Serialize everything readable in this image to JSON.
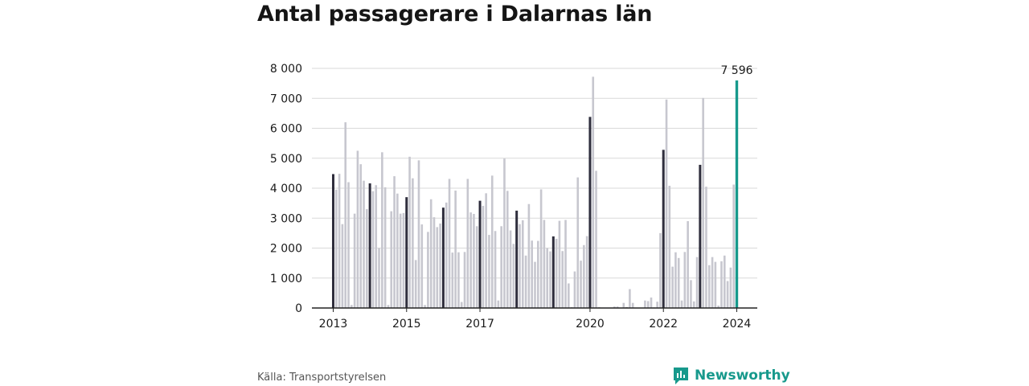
{
  "title": "Antal passagerare i Dalarnas län",
  "source": "Källa: Transportstyrelsen",
  "brand": {
    "name": "Newsworthy",
    "icon": "newsworthy-logo-icon"
  },
  "colors": {
    "bar": "#c7c7cf",
    "january": "#2f2e3d",
    "latest": "#17998c",
    "grid": "#d9d9d9",
    "axis": "#222222",
    "brand": "#17998c"
  },
  "chart_data": {
    "type": "bar",
    "title": "Antal passagerare i Dalarnas län",
    "xlabel": "",
    "ylabel": "",
    "ylim": [
      0,
      8000
    ],
    "yticks": [
      0,
      1000,
      2000,
      3000,
      4000,
      5000,
      6000,
      7000,
      8000
    ],
    "ytick_labels": [
      "0",
      "1 000",
      "2 000",
      "3 000",
      "4 000",
      "5 000",
      "6 000",
      "7 000",
      "8 000"
    ],
    "xtick_labels": [
      {
        "label": "2013",
        "index": 0
      },
      {
        "label": "2015",
        "index": 24
      },
      {
        "label": "2017",
        "index": 48
      },
      {
        "label": "2020",
        "index": 84
      },
      {
        "label": "2022",
        "index": 108
      },
      {
        "label": "2024",
        "index": 132
      }
    ],
    "start": "2013-01",
    "frequency": "monthly",
    "highlight": "January bars dark; latest month highlighted",
    "latest_label": "7 596",
    "values": [
      4470,
      3950,
      4480,
      2800,
      6200,
      4200,
      100,
      3150,
      5250,
      4800,
      4250,
      3300,
      4160,
      3900,
      4100,
      2000,
      5200,
      4030,
      100,
      3230,
      4400,
      3820,
      3150,
      3170,
      3700,
      5050,
      4330,
      1600,
      4930,
      2790,
      100,
      2540,
      3630,
      3030,
      2700,
      2820,
      3350,
      3520,
      4310,
      1850,
      3920,
      1860,
      200,
      1870,
      4310,
      3190,
      3140,
      2730,
      3580,
      3410,
      3830,
      2440,
      4420,
      2570,
      250,
      2730,
      4990,
      3910,
      2590,
      2140,
      3250,
      2800,
      2930,
      1750,
      3470,
      2250,
      1540,
      2240,
      3960,
      2940,
      2000,
      1890,
      2390,
      2310,
      2910,
      1900,
      2940,
      820,
      30,
      1220,
      4360,
      1580,
      2100,
      2400,
      6380,
      7720,
      4580,
      30,
      10,
      0,
      0,
      0,
      50,
      50,
      0,
      170,
      20,
      630,
      170,
      0,
      0,
      0,
      250,
      230,
      350,
      20,
      210,
      2500,
      5280,
      6960,
      4080,
      1380,
      1860,
      1670,
      250,
      1870,
      2900,
      930,
      220,
      1700,
      4780,
      7010,
      4050,
      1430,
      1700,
      1540,
      80,
      1560,
      1750,
      900,
      1350,
      4120,
      7596
    ]
  }
}
